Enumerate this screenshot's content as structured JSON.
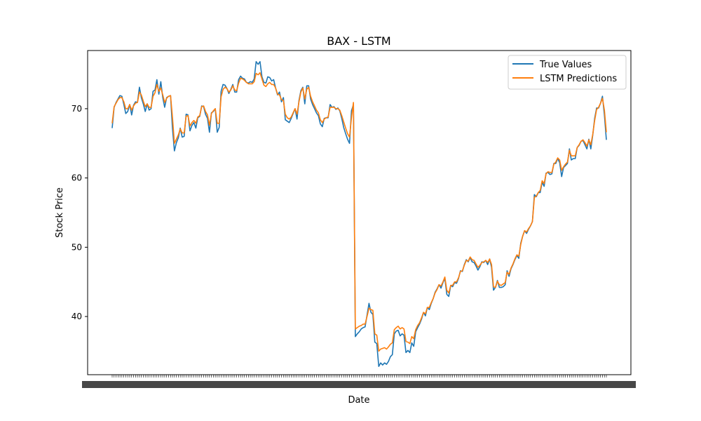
{
  "chart_data": {
    "type": "line",
    "title": "BAX - LSTM",
    "xlabel": "Date",
    "ylabel": "Stock Price",
    "ylim": [
      31.6,
      78.4
    ],
    "yticks": [
      40,
      50,
      60,
      70
    ],
    "grid": false,
    "legend_position": "top-right",
    "x_tick_labels_note": "overlapping illegible date labels",
    "series": [
      {
        "name": "True Values",
        "color": "#1f77b4",
        "values": [
          67.2,
          70.2,
          70.9,
          71.4,
          71.9,
          71.8,
          70.6,
          69.3,
          69.6,
          70.6,
          69.1,
          70.5,
          71.0,
          70.9,
          73.1,
          71.6,
          70.7,
          69.6,
          70.7,
          69.8,
          70.0,
          72.5,
          72.7,
          74.2,
          72.1,
          73.9,
          71.6,
          70.2,
          71.6,
          71.8,
          71.9,
          67.2,
          63.9,
          65.1,
          65.8,
          67.2,
          65.9,
          66.0,
          69.2,
          69.1,
          66.8,
          67.6,
          68.0,
          67.2,
          68.7,
          68.9,
          70.4,
          70.3,
          69.2,
          68.6,
          66.6,
          69.4,
          69.6,
          70.0,
          66.6,
          67.3,
          72.5,
          73.5,
          73.4,
          72.9,
          72.2,
          72.8,
          73.5,
          72.4,
          72.4,
          74.2,
          74.7,
          74.4,
          74.3,
          73.8,
          73.7,
          73.9,
          73.8,
          74.3,
          76.8,
          76.4,
          76.8,
          74.6,
          73.8,
          73.7,
          74.6,
          74.5,
          74.0,
          74.2,
          73.0,
          72.0,
          72.4,
          71.0,
          71.6,
          68.4,
          68.2,
          68.0,
          68.6,
          69.3,
          70.0,
          68.5,
          71.2,
          72.6,
          73.1,
          70.7,
          73.3,
          73.3,
          71.4,
          70.6,
          70.0,
          69.4,
          69.0,
          67.8,
          67.4,
          68.6,
          68.7,
          68.7,
          70.6,
          70.2,
          70.3,
          69.9,
          70.1,
          69.7,
          68.6,
          67.3,
          66.4,
          65.6,
          65.0,
          69.7,
          70.6,
          37.1,
          37.5,
          37.8,
          38.2,
          38.4,
          38.5,
          40.2,
          41.9,
          40.6,
          40.3,
          36.3,
          36.1,
          32.8,
          33.3,
          33.0,
          33.3,
          33.1,
          33.5,
          34.2,
          34.5,
          37.5,
          37.9,
          38.0,
          37.2,
          37.5,
          37.3,
          34.8,
          35.1,
          34.8,
          36.2,
          35.7,
          37.8,
          38.4,
          38.9,
          39.6,
          40.6,
          40.1,
          41.3,
          41.0,
          41.9,
          42.6,
          43.5,
          44.0,
          44.6,
          44.1,
          44.9,
          45.5,
          43.2,
          42.9,
          44.5,
          44.3,
          44.9,
          44.8,
          45.5,
          46.6,
          46.5,
          47.5,
          48.2,
          47.9,
          48.5,
          47.9,
          47.8,
          47.3,
          46.7,
          47.2,
          47.9,
          47.8,
          48.1,
          47.5,
          48.3,
          47.1,
          43.8,
          44.2,
          45.2,
          44.2,
          44.2,
          44.3,
          44.6,
          46.6,
          45.8,
          46.9,
          47.5,
          48.2,
          48.8,
          48.4,
          50.6,
          51.6,
          52.4,
          52.0,
          52.6,
          53.1,
          53.7,
          57.6,
          57.3,
          57.9,
          57.9,
          59.4,
          58.8,
          60.7,
          60.8,
          60.5,
          60.6,
          62.1,
          62.1,
          62.8,
          62.2,
          60.2,
          61.5,
          61.8,
          62.1,
          64.2,
          62.6,
          62.8,
          62.8,
          64.4,
          64.7,
          65.3,
          65.4,
          64.8,
          64.2,
          65.6,
          64.2,
          66.2,
          68.6,
          70.1,
          70.1,
          70.8,
          71.8,
          69.1,
          65.5
        ]
      },
      {
        "name": "LSTM Predictions",
        "color": "#ff7f0e",
        "values": [
          67.9,
          70.3,
          70.8,
          71.3,
          71.6,
          71.6,
          71.0,
          70.0,
          70.0,
          70.6,
          69.8,
          70.4,
          70.8,
          70.9,
          72.4,
          72.0,
          71.1,
          70.3,
          70.7,
          70.2,
          70.2,
          71.8,
          72.3,
          73.5,
          72.5,
          73.0,
          72.0,
          70.9,
          71.5,
          71.8,
          71.9,
          68.8,
          65.0,
          65.6,
          66.2,
          67.1,
          66.5,
          66.5,
          68.9,
          69.0,
          67.5,
          68.0,
          68.3,
          67.9,
          68.8,
          69.0,
          70.3,
          70.4,
          69.6,
          69.1,
          67.6,
          69.3,
          69.7,
          70.0,
          67.9,
          67.9,
          71.7,
          72.8,
          73.1,
          72.9,
          72.4,
          72.7,
          73.3,
          72.7,
          72.6,
          73.7,
          74.4,
          74.3,
          74.1,
          73.8,
          73.6,
          73.6,
          73.6,
          73.9,
          75.1,
          74.9,
          75.2,
          74.3,
          73.4,
          73.2,
          73.6,
          73.8,
          73.5,
          73.5,
          73.0,
          72.1,
          72.0,
          71.3,
          71.2,
          69.2,
          68.7,
          68.5,
          68.8,
          69.4,
          70.0,
          69.2,
          71.0,
          72.4,
          73.0,
          71.4,
          72.8,
          73.1,
          71.8,
          71.0,
          70.4,
          69.8,
          69.4,
          68.4,
          68.0,
          68.5,
          68.7,
          68.8,
          70.2,
          70.2,
          70.2,
          70.0,
          70.0,
          69.8,
          69.0,
          68.1,
          67.2,
          66.4,
          65.9,
          68.7,
          70.9,
          38.2,
          38.4,
          38.6,
          38.7,
          38.9,
          38.9,
          40.0,
          41.2,
          41.0,
          40.9,
          37.5,
          37.3,
          35.0,
          35.3,
          35.4,
          35.5,
          35.3,
          35.6,
          36.0,
          36.2,
          38.1,
          38.4,
          38.6,
          38.2,
          38.4,
          38.2,
          36.4,
          36.3,
          36.1,
          37.1,
          36.8,
          38.1,
          38.7,
          39.1,
          39.8,
          40.6,
          40.4,
          41.3,
          41.3,
          42.0,
          42.6,
          43.4,
          43.9,
          44.6,
          44.4,
          45.0,
          45.7,
          43.8,
          43.4,
          44.5,
          44.5,
          45.0,
          45.0,
          45.6,
          46.5,
          46.6,
          47.4,
          48.1,
          48.0,
          48.6,
          48.2,
          48.1,
          47.6,
          47.1,
          47.4,
          47.8,
          47.9,
          48.1,
          47.8,
          48.3,
          47.5,
          44.3,
          44.2,
          45.1,
          44.6,
          44.5,
          44.7,
          44.9,
          46.4,
          46.1,
          47.0,
          47.6,
          48.3,
          48.9,
          48.7,
          50.4,
          51.6,
          52.4,
          52.2,
          52.7,
          53.1,
          53.7,
          57.2,
          57.4,
          57.9,
          58.2,
          59.6,
          59.2,
          60.6,
          60.9,
          60.8,
          60.8,
          62.0,
          62.3,
          62.9,
          62.6,
          61.1,
          61.6,
          62.0,
          62.3,
          64.0,
          63.2,
          63.2,
          63.2,
          64.4,
          64.8,
          65.3,
          65.5,
          65.1,
          64.6,
          65.5,
          64.8,
          66.3,
          68.3,
          69.9,
          70.2,
          70.8,
          71.5,
          69.8,
          66.6
        ]
      }
    ]
  }
}
